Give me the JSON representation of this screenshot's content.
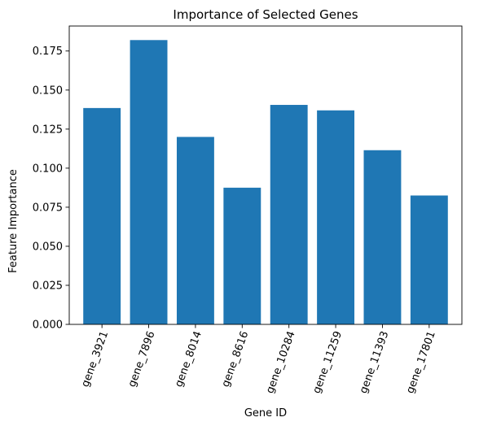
{
  "chart_data": {
    "type": "bar",
    "title": "Importance of Selected Genes",
    "xlabel": "Gene ID",
    "ylabel": "Feature Importance",
    "categories": [
      "gene_3921",
      "gene_7896",
      "gene_8014",
      "gene_8616",
      "gene_10284",
      "gene_11259",
      "gene_11393",
      "gene_17801"
    ],
    "values": [
      0.1385,
      0.182,
      0.12,
      0.0875,
      0.1405,
      0.137,
      0.1115,
      0.0825
    ],
    "yticks": [
      "0.000",
      "0.025",
      "0.050",
      "0.075",
      "0.100",
      "0.125",
      "0.150",
      "0.175"
    ],
    "ylim": [
      0,
      0.191
    ],
    "bar_color": "#1f77b4",
    "grid": false,
    "legend": false,
    "x_tick_rotation_deg": -70
  }
}
